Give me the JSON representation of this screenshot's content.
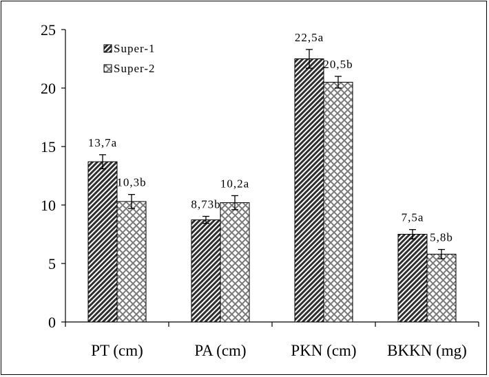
{
  "chart_data": {
    "type": "bar",
    "categories": [
      "PT (cm)",
      "PA (cm)",
      "PKN (cm)",
      "BKKN (mg)"
    ],
    "ylim": [
      0,
      25
    ],
    "yticks": [
      0,
      5,
      10,
      15,
      20,
      25
    ],
    "grid": false,
    "legend_position": "top-left",
    "series": [
      {
        "name": "Super-1",
        "values": [
          13.7,
          8.73,
          22.5,
          7.5
        ],
        "errors": [
          0.6,
          0.3,
          0.8,
          0.4
        ],
        "labels": [
          "13,7a",
          "8,73b",
          "22,5a",
          "7,5a"
        ],
        "pattern": "diagonal-hatch",
        "color": "#3a3a3a"
      },
      {
        "name": "Super-2",
        "values": [
          10.3,
          10.2,
          20.5,
          5.8
        ],
        "errors": [
          0.6,
          0.6,
          0.5,
          0.4
        ],
        "labels": [
          "10,3b",
          "10,2a",
          "20,5b",
          "5,8b"
        ],
        "pattern": "crosshatch",
        "color": "#9a9a9a"
      }
    ]
  }
}
